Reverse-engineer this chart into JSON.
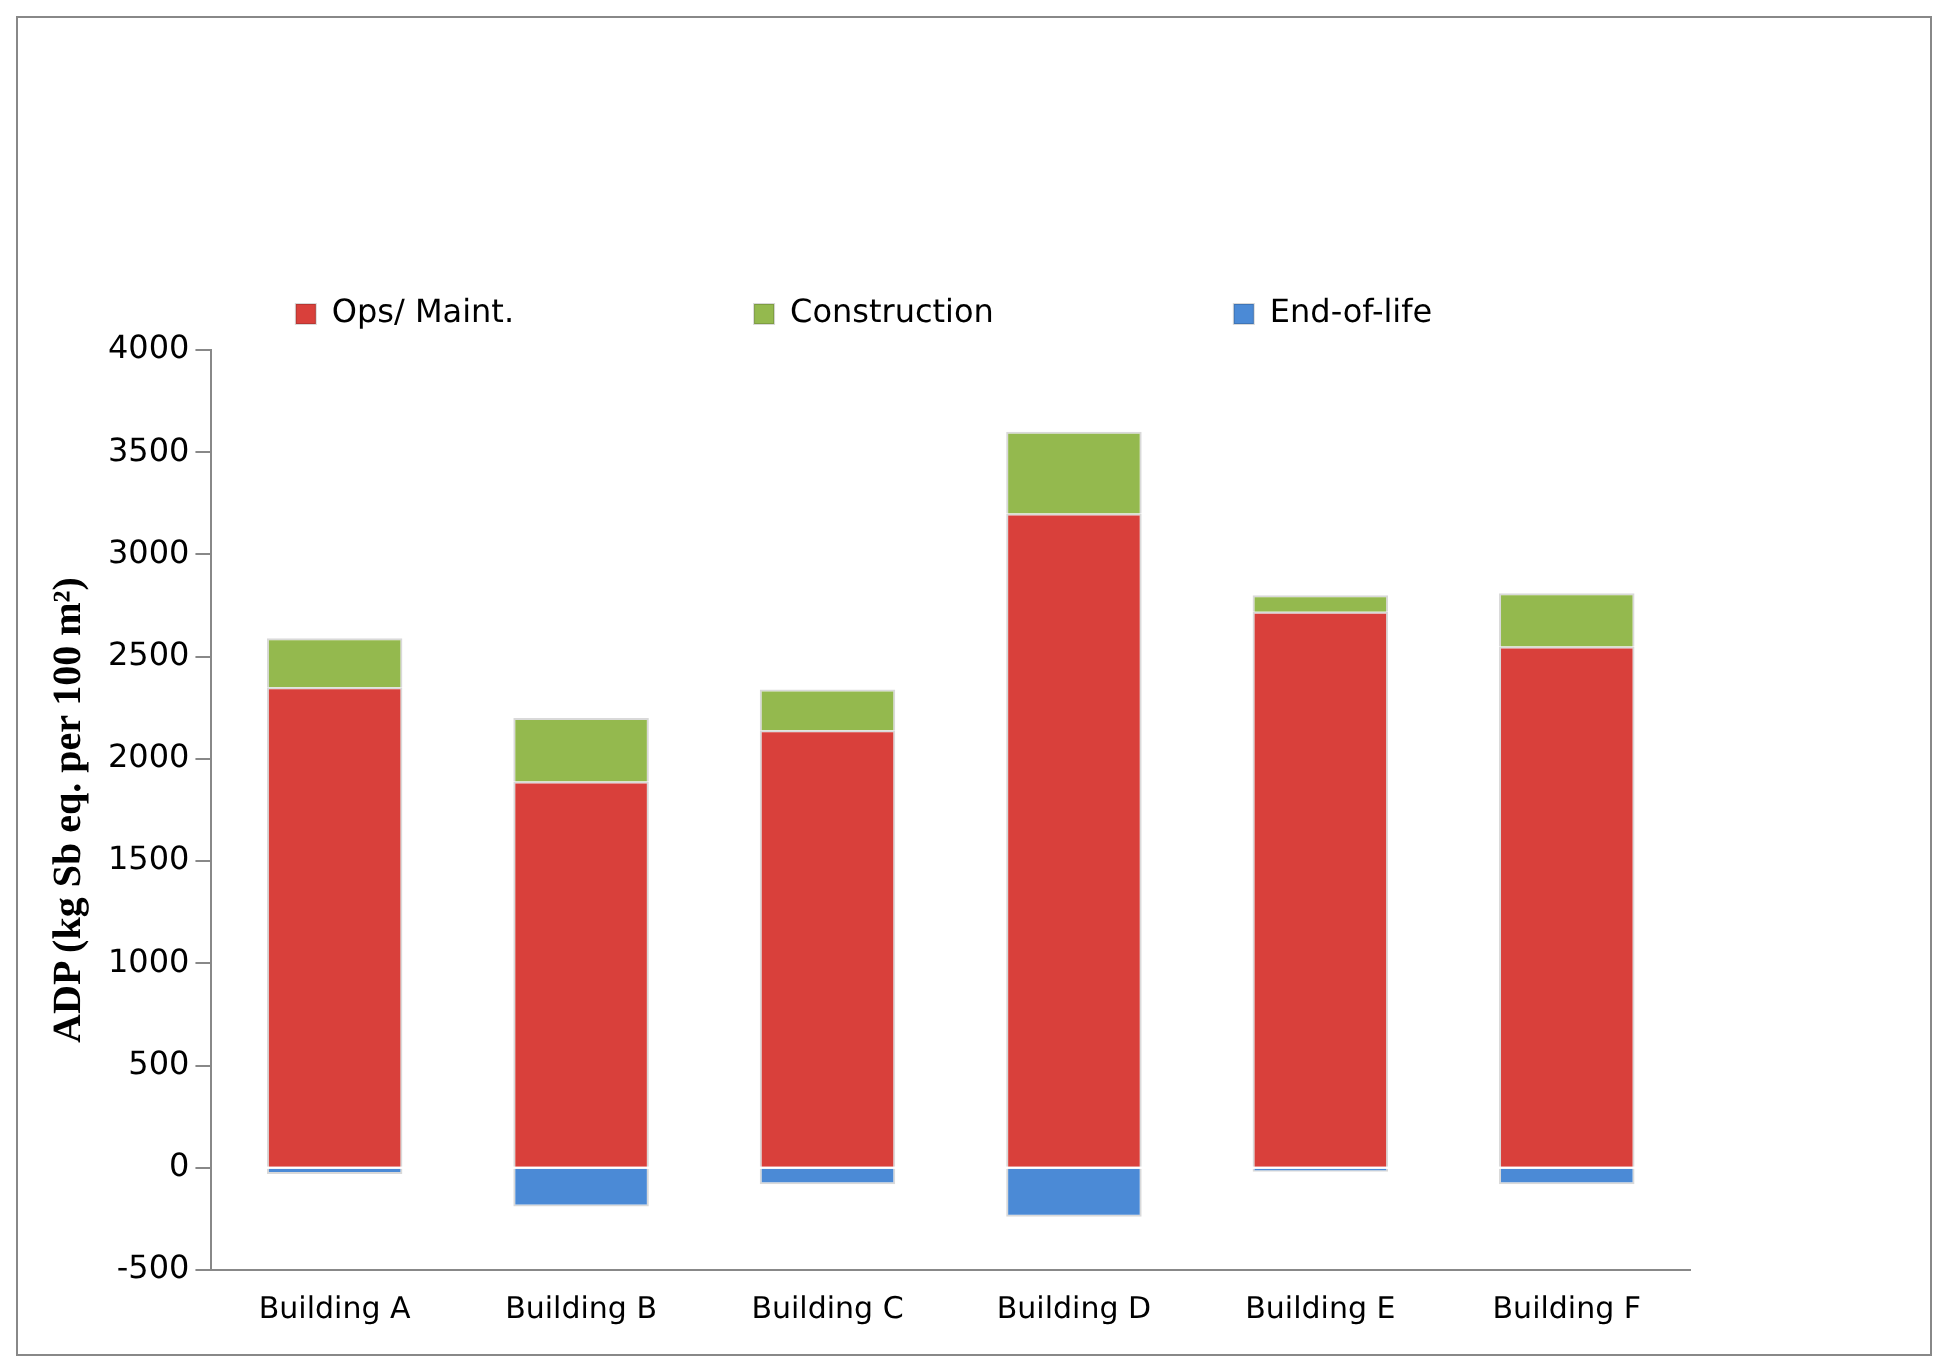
{
  "chart_data": {
    "type": "bar",
    "ylabel": "ADP (kg Sb eq. per 100 m²)",
    "categories": [
      "Building A",
      "Building B",
      "Building C",
      "Building D",
      "Building E",
      "Building F"
    ],
    "stacked": true,
    "legend": "top",
    "grid": false,
    "ylim": [
      -500,
      4000
    ],
    "yticks": [
      -500,
      0,
      500,
      1000,
      1500,
      2000,
      2500,
      3000,
      3500,
      4000
    ],
    "series": [
      {
        "name": "Ops/ Maint.",
        "color": "#d9403b",
        "values": [
          2350,
          1890,
          2140,
          3200,
          2720,
          2550
        ]
      },
      {
        "name": "Construction",
        "color": "#94b94e",
        "values": [
          240,
          310,
          200,
          400,
          80,
          260
        ]
      },
      {
        "name": "End-of-life",
        "color": "#4b8ad6",
        "values": [
          -30,
          -190,
          -80,
          -240,
          -20,
          -80
        ]
      }
    ]
  }
}
